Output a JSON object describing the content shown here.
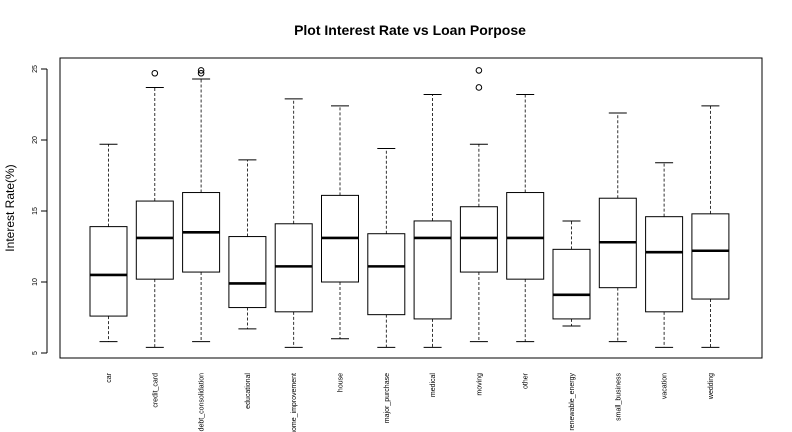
{
  "chart_data": {
    "type": "boxplot",
    "title": "Plot Interest Rate vs Loan Porpose",
    "xlabel": "",
    "ylabel": "Interest Rate(%)",
    "ylim": [
      5,
      25
    ],
    "yticks": [
      5,
      10,
      15,
      20,
      25
    ],
    "grid": false,
    "categories": [
      "car",
      "credit_card",
      "debt_consolidation",
      "educational",
      "home_improvement",
      "house",
      "major_purchase",
      "medical",
      "moving",
      "other",
      "renewable_energy",
      "small_business",
      "vacation",
      "wedding"
    ],
    "boxes": [
      {
        "min": 5.8,
        "q1": 7.6,
        "median": 10.5,
        "q3": 13.9,
        "max": 19.7,
        "outliers": []
      },
      {
        "min": 5.4,
        "q1": 10.2,
        "median": 13.1,
        "q3": 15.7,
        "max": 23.7,
        "outliers": [
          24.7
        ]
      },
      {
        "min": 5.8,
        "q1": 10.7,
        "median": 13.5,
        "q3": 16.3,
        "max": 24.3,
        "outliers": [
          24.7,
          24.9
        ]
      },
      {
        "min": 6.7,
        "q1": 8.2,
        "median": 9.9,
        "q3": 13.2,
        "max": 18.6,
        "outliers": []
      },
      {
        "min": 5.4,
        "q1": 7.9,
        "median": 11.1,
        "q3": 14.1,
        "max": 22.9,
        "outliers": []
      },
      {
        "min": 6.0,
        "q1": 10.0,
        "median": 13.1,
        "q3": 16.1,
        "max": 22.4,
        "outliers": []
      },
      {
        "min": 5.4,
        "q1": 7.7,
        "median": 11.1,
        "q3": 13.4,
        "max": 19.4,
        "outliers": []
      },
      {
        "min": 5.4,
        "q1": 7.4,
        "median": 13.1,
        "q3": 14.3,
        "max": 23.2,
        "outliers": []
      },
      {
        "min": 5.8,
        "q1": 10.7,
        "median": 13.1,
        "q3": 15.3,
        "max": 19.7,
        "outliers": [
          23.7,
          24.9
        ]
      },
      {
        "min": 5.8,
        "q1": 10.2,
        "median": 13.1,
        "q3": 16.3,
        "max": 23.2,
        "outliers": []
      },
      {
        "min": 6.9,
        "q1": 7.4,
        "median": 9.1,
        "q3": 12.3,
        "max": 14.3,
        "outliers": []
      },
      {
        "min": 5.8,
        "q1": 9.6,
        "median": 12.8,
        "q3": 15.9,
        "max": 21.9,
        "outliers": []
      },
      {
        "min": 5.4,
        "q1": 7.9,
        "median": 12.1,
        "q3": 14.6,
        "max": 18.4,
        "outliers": []
      },
      {
        "min": 5.4,
        "q1": 8.8,
        "median": 12.2,
        "q3": 14.8,
        "max": 22.4,
        "outliers": []
      }
    ]
  }
}
